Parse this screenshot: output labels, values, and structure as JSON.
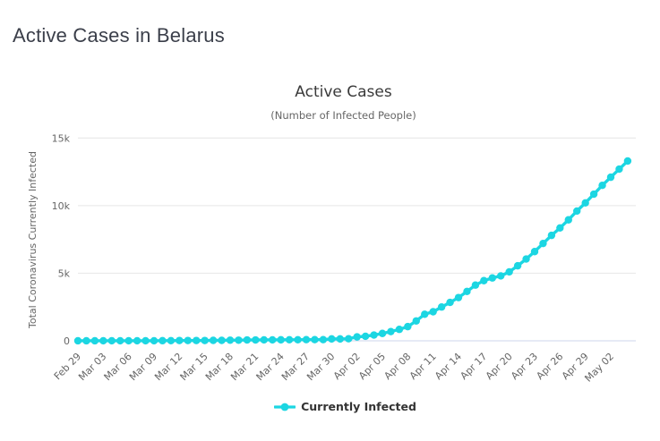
{
  "page": {
    "title": "Active Cases in Belarus"
  },
  "chart": {
    "title": "Active Cases",
    "subtitle": "(Number of Infected People)",
    "legend_label": "Currently Infected"
  },
  "chart_data": {
    "type": "line",
    "title": "Active Cases",
    "subtitle": "(Number of Infected People)",
    "xlabel": "",
    "ylabel": "Total Coronavirus Currently Infected",
    "ylim": [
      0,
      15000
    ],
    "grid": "horizontal",
    "legend_position": "bottom",
    "x_tick_every": 3,
    "yticks": [
      {
        "value": 0,
        "label": "0"
      },
      {
        "value": 5000,
        "label": "5k"
      },
      {
        "value": 10000,
        "label": "10k"
      },
      {
        "value": 15000,
        "label": "15k"
      }
    ],
    "colors": {
      "series": "#1cd6e2",
      "grid": "#e6e6e6",
      "axis_line": "#ccd6eb",
      "tick_text": "#666666",
      "axis_title_text": "#666666"
    },
    "x": [
      "Feb 29",
      "Mar 01",
      "Mar 02",
      "Mar 03",
      "Mar 04",
      "Mar 05",
      "Mar 06",
      "Mar 07",
      "Mar 08",
      "Mar 09",
      "Mar 10",
      "Mar 11",
      "Mar 12",
      "Mar 13",
      "Mar 14",
      "Mar 15",
      "Mar 16",
      "Mar 17",
      "Mar 18",
      "Mar 19",
      "Mar 20",
      "Mar 21",
      "Mar 22",
      "Mar 23",
      "Mar 24",
      "Mar 25",
      "Mar 26",
      "Mar 27",
      "Mar 28",
      "Mar 29",
      "Mar 30",
      "Mar 31",
      "Apr 01",
      "Apr 02",
      "Apr 03",
      "Apr 04",
      "Apr 05",
      "Apr 06",
      "Apr 07",
      "Apr 08",
      "Apr 09",
      "Apr 10",
      "Apr 11",
      "Apr 12",
      "Apr 13",
      "Apr 14",
      "Apr 15",
      "Apr 16",
      "Apr 17",
      "Apr 18",
      "Apr 19",
      "Apr 20",
      "Apr 21",
      "Apr 22",
      "Apr 23",
      "Apr 24",
      "Apr 25",
      "Apr 26",
      "Apr 27",
      "Apr 28",
      "Apr 29",
      "Apr 30",
      "May 01",
      "May 02",
      "May 03",
      "May 04"
    ],
    "series": [
      {
        "name": "Currently Infected",
        "color": "#1cd6e2",
        "values": [
          1,
          1,
          1,
          4,
          6,
          6,
          6,
          6,
          6,
          6,
          9,
          12,
          24,
          24,
          24,
          24,
          33,
          33,
          48,
          48,
          64,
          64,
          70,
          70,
          75,
          80,
          80,
          88,
          88,
          88,
          140,
          140,
          152,
          289,
          336,
          424,
          546,
          684,
          845,
          1050,
          1470,
          1965,
          2150,
          2500,
          2840,
          3200,
          3650,
          4120,
          4450,
          4650,
          4800,
          5100,
          5550,
          6050,
          6600,
          7200,
          7800,
          8350,
          8950,
          9600,
          10200,
          10850,
          11500,
          12100,
          12700,
          13300
        ]
      }
    ]
  }
}
